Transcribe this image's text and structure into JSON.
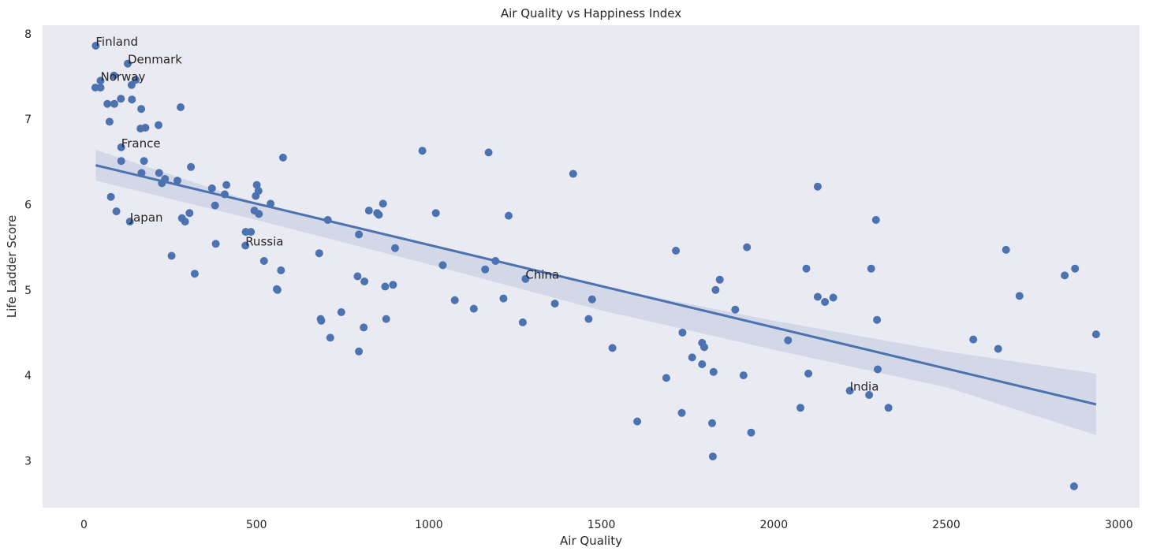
{
  "chart_data": {
    "type": "scatter",
    "title": "Air Quality vs Happiness Index",
    "xlabel": "Air Quality",
    "ylabel": "Life Ladder Score",
    "xlim": [
      -120,
      3060
    ],
    "ylim": [
      2.45,
      8.1
    ],
    "xticks": [
      0,
      500,
      1000,
      1500,
      2000,
      2500,
      3000
    ],
    "yticks": [
      3,
      4,
      5,
      6,
      7,
      8
    ],
    "grid": false,
    "colors": {
      "background": "#eaeaf2",
      "point": "#4c72b0",
      "line": "#4c72b0",
      "band": "#4c72b0"
    },
    "points": [
      [
        34,
        7.86
      ],
      [
        127,
        7.65
      ],
      [
        87,
        7.51
      ],
      [
        48,
        7.45
      ],
      [
        150,
        7.46
      ],
      [
        33,
        7.37
      ],
      [
        48,
        7.37
      ],
      [
        138,
        7.4
      ],
      [
        107,
        7.24
      ],
      [
        139,
        7.23
      ],
      [
        68,
        7.18
      ],
      [
        88,
        7.18
      ],
      [
        166,
        7.12
      ],
      [
        280,
        7.14
      ],
      [
        74,
        6.97
      ],
      [
        164,
        6.89
      ],
      [
        178,
        6.9
      ],
      [
        216,
        6.93
      ],
      [
        108,
        6.67
      ],
      [
        310,
        6.44
      ],
      [
        108,
        6.51
      ],
      [
        174,
        6.51
      ],
      [
        167,
        6.37
      ],
      [
        218,
        6.37
      ],
      [
        235,
        6.3
      ],
      [
        226,
        6.25
      ],
      [
        271,
        6.28
      ],
      [
        371,
        6.19
      ],
      [
        408,
        6.12
      ],
      [
        413,
        6.23
      ],
      [
        501,
        6.23
      ],
      [
        506,
        6.16
      ],
      [
        498,
        6.1
      ],
      [
        577,
        6.55
      ],
      [
        78,
        6.09
      ],
      [
        94,
        5.92
      ],
      [
        380,
        5.99
      ],
      [
        306,
        5.9
      ],
      [
        541,
        6.01
      ],
      [
        494,
        5.93
      ],
      [
        507,
        5.89
      ],
      [
        284,
        5.84
      ],
      [
        293,
        5.8
      ],
      [
        133,
        5.8
      ],
      [
        382,
        5.54
      ],
      [
        469,
        5.68
      ],
      [
        484,
        5.68
      ],
      [
        468,
        5.52
      ],
      [
        254,
        5.4
      ],
      [
        522,
        5.34
      ],
      [
        571,
        5.23
      ],
      [
        321,
        5.19
      ],
      [
        559,
        5.01
      ],
      [
        561,
        5.0
      ],
      [
        682,
        5.43
      ],
      [
        707,
        5.82
      ],
      [
        797,
        5.65
      ],
      [
        826,
        5.93
      ],
      [
        850,
        5.9
      ],
      [
        855,
        5.88
      ],
      [
        867,
        6.01
      ],
      [
        981,
        6.63
      ],
      [
        1020,
        5.9
      ],
      [
        902,
        5.49
      ],
      [
        1040,
        5.29
      ],
      [
        1173,
        6.61
      ],
      [
        1231,
        5.87
      ],
      [
        1418,
        6.36
      ],
      [
        793,
        5.16
      ],
      [
        813,
        5.1
      ],
      [
        873,
        5.04
      ],
      [
        896,
        5.06
      ],
      [
        686,
        4.66
      ],
      [
        688,
        4.64
      ],
      [
        746,
        4.74
      ],
      [
        714,
        4.44
      ],
      [
        811,
        4.56
      ],
      [
        797,
        4.28
      ],
      [
        876,
        4.66
      ],
      [
        1075,
        4.88
      ],
      [
        1130,
        4.78
      ],
      [
        1163,
        5.24
      ],
      [
        1193,
        5.34
      ],
      [
        1216,
        4.9
      ],
      [
        1272,
        4.62
      ],
      [
        1280,
        5.13
      ],
      [
        1365,
        4.84
      ],
      [
        1463,
        4.66
      ],
      [
        1473,
        4.89
      ],
      [
        1532,
        4.32
      ],
      [
        1604,
        3.46
      ],
      [
        1688,
        3.97
      ],
      [
        1716,
        5.46
      ],
      [
        1735,
        4.5
      ],
      [
        1733,
        3.56
      ],
      [
        1763,
        4.21
      ],
      [
        1792,
        4.38
      ],
      [
        1798,
        4.33
      ],
      [
        1792,
        4.13
      ],
      [
        1825,
        4.04
      ],
      [
        1831,
        5.0
      ],
      [
        1843,
        5.12
      ],
      [
        1821,
        3.44
      ],
      [
        1823,
        3.05
      ],
      [
        1888,
        4.77
      ],
      [
        1912,
        4.0
      ],
      [
        1922,
        5.5
      ],
      [
        1934,
        3.33
      ],
      [
        2041,
        4.41
      ],
      [
        2077,
        3.62
      ],
      [
        2094,
        5.25
      ],
      [
        2100,
        4.02
      ],
      [
        2127,
        6.21
      ],
      [
        2127,
        4.92
      ],
      [
        2148,
        4.86
      ],
      [
        2172,
        4.91
      ],
      [
        2220,
        3.82
      ],
      [
        2276,
        3.77
      ],
      [
        2282,
        5.25
      ],
      [
        2296,
        5.82
      ],
      [
        2299,
        4.65
      ],
      [
        2301,
        4.07
      ],
      [
        2332,
        3.62
      ],
      [
        2578,
        4.42
      ],
      [
        2650,
        4.31
      ],
      [
        2673,
        5.47
      ],
      [
        2712,
        4.93
      ],
      [
        2843,
        5.17
      ],
      [
        2873,
        5.25
      ],
      [
        2870,
        2.7
      ],
      [
        2934,
        4.48
      ]
    ],
    "regression": {
      "x": [
        34,
        2934
      ],
      "y": [
        6.46,
        3.66
      ]
    },
    "confidence_band": {
      "x": [
        34,
        500,
        1000,
        1500,
        2000,
        2500,
        2934
      ],
      "upper": [
        6.64,
        6.02,
        5.52,
        5.04,
        4.64,
        4.28,
        4.02
      ],
      "lower": [
        6.28,
        5.82,
        5.3,
        4.76,
        4.3,
        3.86,
        3.3
      ]
    },
    "annotations": [
      {
        "text": "Finland",
        "x": 34,
        "y": 7.86
      },
      {
        "text": "Denmark",
        "x": 127,
        "y": 7.65
      },
      {
        "text": "Norway",
        "x": 48,
        "y": 7.45
      },
      {
        "text": "France",
        "x": 108,
        "y": 6.67
      },
      {
        "text": "Japan",
        "x": 133,
        "y": 5.8
      },
      {
        "text": "Russia",
        "x": 468,
        "y": 5.52
      },
      {
        "text": "China",
        "x": 1280,
        "y": 5.13
      },
      {
        "text": "India",
        "x": 2220,
        "y": 3.82
      }
    ]
  }
}
